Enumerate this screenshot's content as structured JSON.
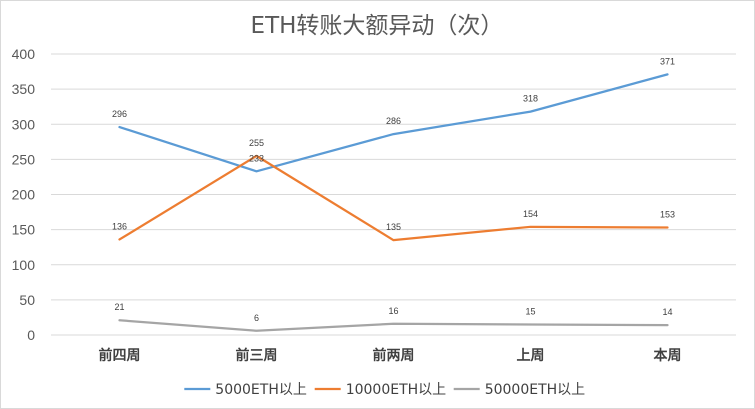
{
  "chart_data": {
    "type": "line",
    "title": "ETH转账大额异动（次）",
    "xlabel": "",
    "ylabel": "",
    "categories": [
      "前四周",
      "前三周",
      "前两周",
      "上周",
      "本周"
    ],
    "ylim": [
      0,
      400
    ],
    "yticks": [
      0,
      50,
      100,
      150,
      200,
      250,
      300,
      350,
      400
    ],
    "grid": true,
    "legend": "bottom",
    "series": [
      {
        "name": "5000ETH以上",
        "values": [
          296,
          233,
          286,
          318,
          371
        ],
        "labels": [
          "296",
          "233",
          "286",
          "318",
          "371"
        ],
        "color": "#5b9bd5"
      },
      {
        "name": "10000ETH以上",
        "values": [
          136,
          255,
          135,
          154,
          153
        ],
        "labels": [
          "136",
          "255",
          "135",
          "154",
          "153"
        ],
        "color": "#ed7d31"
      },
      {
        "name": "50000ETH以上",
        "values": [
          21,
          6,
          16,
          15,
          14
        ],
        "labels": [
          "21",
          "6",
          "16",
          "15",
          "14"
        ],
        "color": "#a5a5a5"
      }
    ]
  }
}
